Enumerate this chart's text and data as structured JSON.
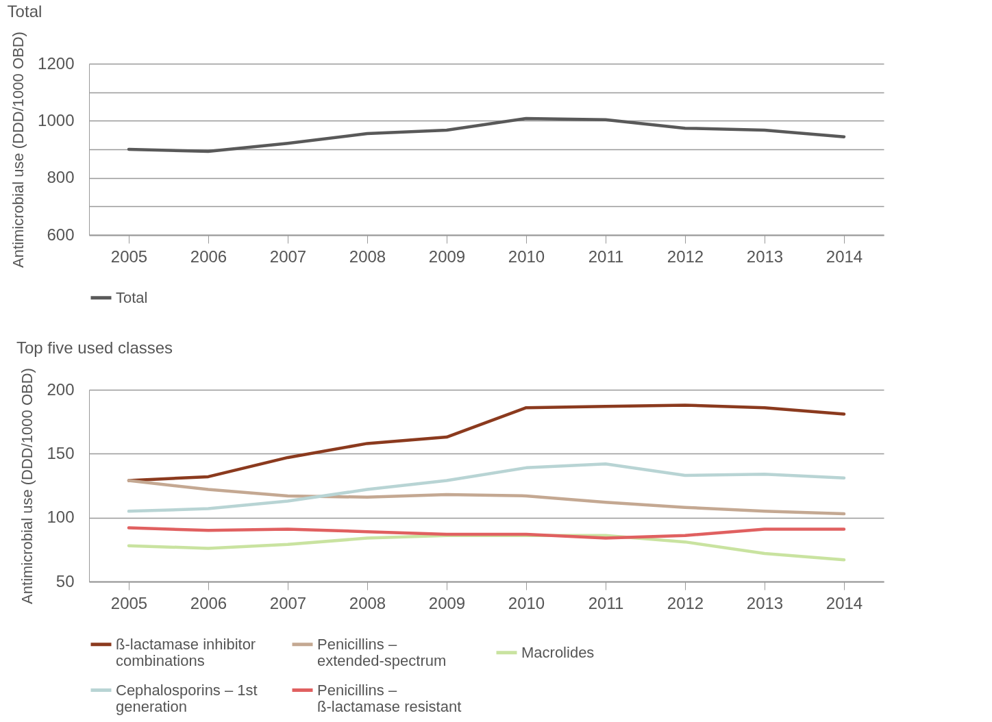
{
  "chart_data": [
    {
      "type": "line",
      "title": "Total",
      "ylabel": "Antimicrobial use (DDD/1000 OBD)",
      "categories": [
        "2005",
        "2006",
        "2007",
        "2008",
        "2009",
        "2010",
        "2011",
        "2012",
        "2013",
        "2014"
      ],
      "series": [
        {
          "name": "Total",
          "color": "#595959",
          "values": [
            900,
            893,
            921,
            955,
            967,
            1008,
            1004,
            974,
            967,
            944
          ]
        }
      ],
      "ylim": [
        600,
        1200
      ],
      "yticks": [
        600,
        {
          "value": 700,
          "label": null
        },
        800,
        {
          "value": 900,
          "label": null
        },
        1000,
        {
          "value": 1100,
          "label": null
        },
        1200
      ],
      "grid": "y",
      "legend": "bottom left",
      "marker": "none",
      "line_style": "solid"
    },
    {
      "type": "line",
      "title": "Top five used classes",
      "ylabel": "Antimicrobial use (DDD/1000 OBD)",
      "categories": [
        "2005",
        "2006",
        "2007",
        "2008",
        "2009",
        "2010",
        "2011",
        "2012",
        "2013",
        "2014"
      ],
      "series": [
        {
          "name": "ß-lactamase inhibitor combinations",
          "color": "#8b3a1e",
          "values": [
            129,
            132,
            147,
            158,
            163,
            186,
            187,
            188,
            186,
            181
          ]
        },
        {
          "name": "Penicillins – extended-spectrum",
          "color": "#c4a892",
          "values": [
            129,
            122,
            117,
            116,
            118,
            117,
            112,
            108,
            105,
            103
          ]
        },
        {
          "name": "Macrolides",
          "color": "#c9e3a0",
          "values": [
            78,
            76,
            79,
            84,
            86,
            86,
            86,
            81,
            72,
            67
          ]
        },
        {
          "name": "Cephalosporins – 1st generation",
          "color": "#b8d4d4",
          "values": [
            105,
            107,
            113,
            122,
            129,
            139,
            142,
            133,
            134,
            131
          ]
        },
        {
          "name": "Penicillins – ß-lactamase resistant",
          "color": "#e06060",
          "values": [
            92,
            90,
            91,
            89,
            87,
            87,
            84,
            86,
            91,
            91
          ]
        }
      ],
      "ylim": [
        50,
        200
      ],
      "yticks": [
        50,
        100,
        150,
        200
      ],
      "grid": "y",
      "legend": "bottom left",
      "marker": "none",
      "line_style": "solid"
    }
  ]
}
